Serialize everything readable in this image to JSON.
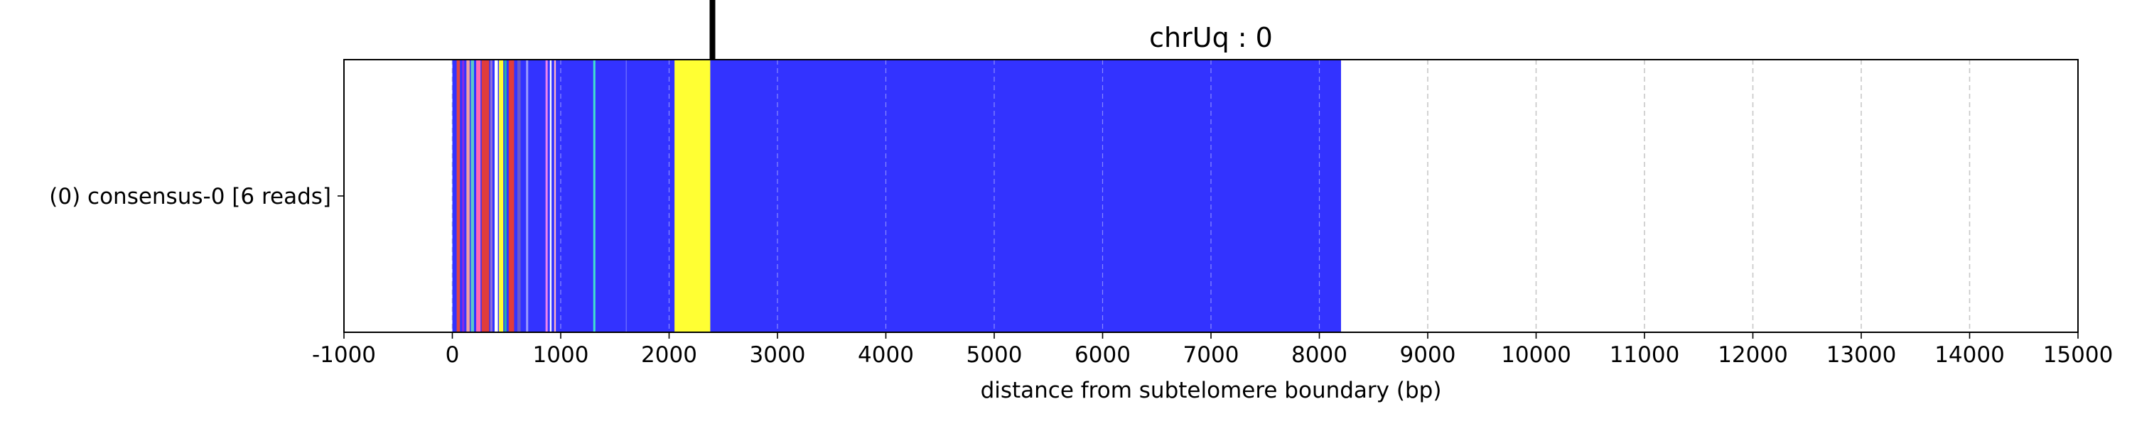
{
  "chart_data": {
    "type": "bar",
    "title": "chrUq : 0",
    "xlabel": "distance from subtelomere boundary (bp)",
    "ylabel": "",
    "xlim": [
      -1000,
      15000
    ],
    "x_ticks": [
      -1000,
      0,
      1000,
      2000,
      3000,
      4000,
      5000,
      6000,
      7000,
      8000,
      9000,
      10000,
      11000,
      12000,
      13000,
      14000,
      15000
    ],
    "grid": "vertical dashed",
    "rows": [
      {
        "label": "(0) consensus-0 [6 reads]",
        "track_start": 0,
        "track_end": 8200
      }
    ],
    "base_color": "#3333ff",
    "boundary_marker_x": 2400,
    "segments": [
      {
        "start": 40,
        "end": 70,
        "color": "#e04545"
      },
      {
        "start": 90,
        "end": 110,
        "color": "#8a2be2"
      },
      {
        "start": 130,
        "end": 160,
        "color": "#f4a0a0"
      },
      {
        "start": 170,
        "end": 200,
        "color": "#5ac8c8"
      },
      {
        "start": 220,
        "end": 260,
        "color": "#ff69b4"
      },
      {
        "start": 270,
        "end": 340,
        "color": "#e03c3c"
      },
      {
        "start": 350,
        "end": 370,
        "color": "#9370db"
      },
      {
        "start": 390,
        "end": 420,
        "color": "#ffffff"
      },
      {
        "start": 430,
        "end": 470,
        "color": "#ffff33"
      },
      {
        "start": 480,
        "end": 500,
        "color": "#20b2aa"
      },
      {
        "start": 520,
        "end": 570,
        "color": "#e03c3c"
      },
      {
        "start": 600,
        "end": 630,
        "color": "#6a5acd"
      },
      {
        "start": 680,
        "end": 700,
        "color": "#9999ff"
      },
      {
        "start": 860,
        "end": 880,
        "color": "#ee82ee"
      },
      {
        "start": 900,
        "end": 915,
        "color": "#ffffff"
      },
      {
        "start": 940,
        "end": 955,
        "color": "#ffb6c1"
      },
      {
        "start": 1300,
        "end": 1320,
        "color": "#40e0d0"
      },
      {
        "start": 1600,
        "end": 1610,
        "color": "#6666ff"
      },
      {
        "start": 2050,
        "end": 2380,
        "color": "#ffff33"
      }
    ]
  }
}
